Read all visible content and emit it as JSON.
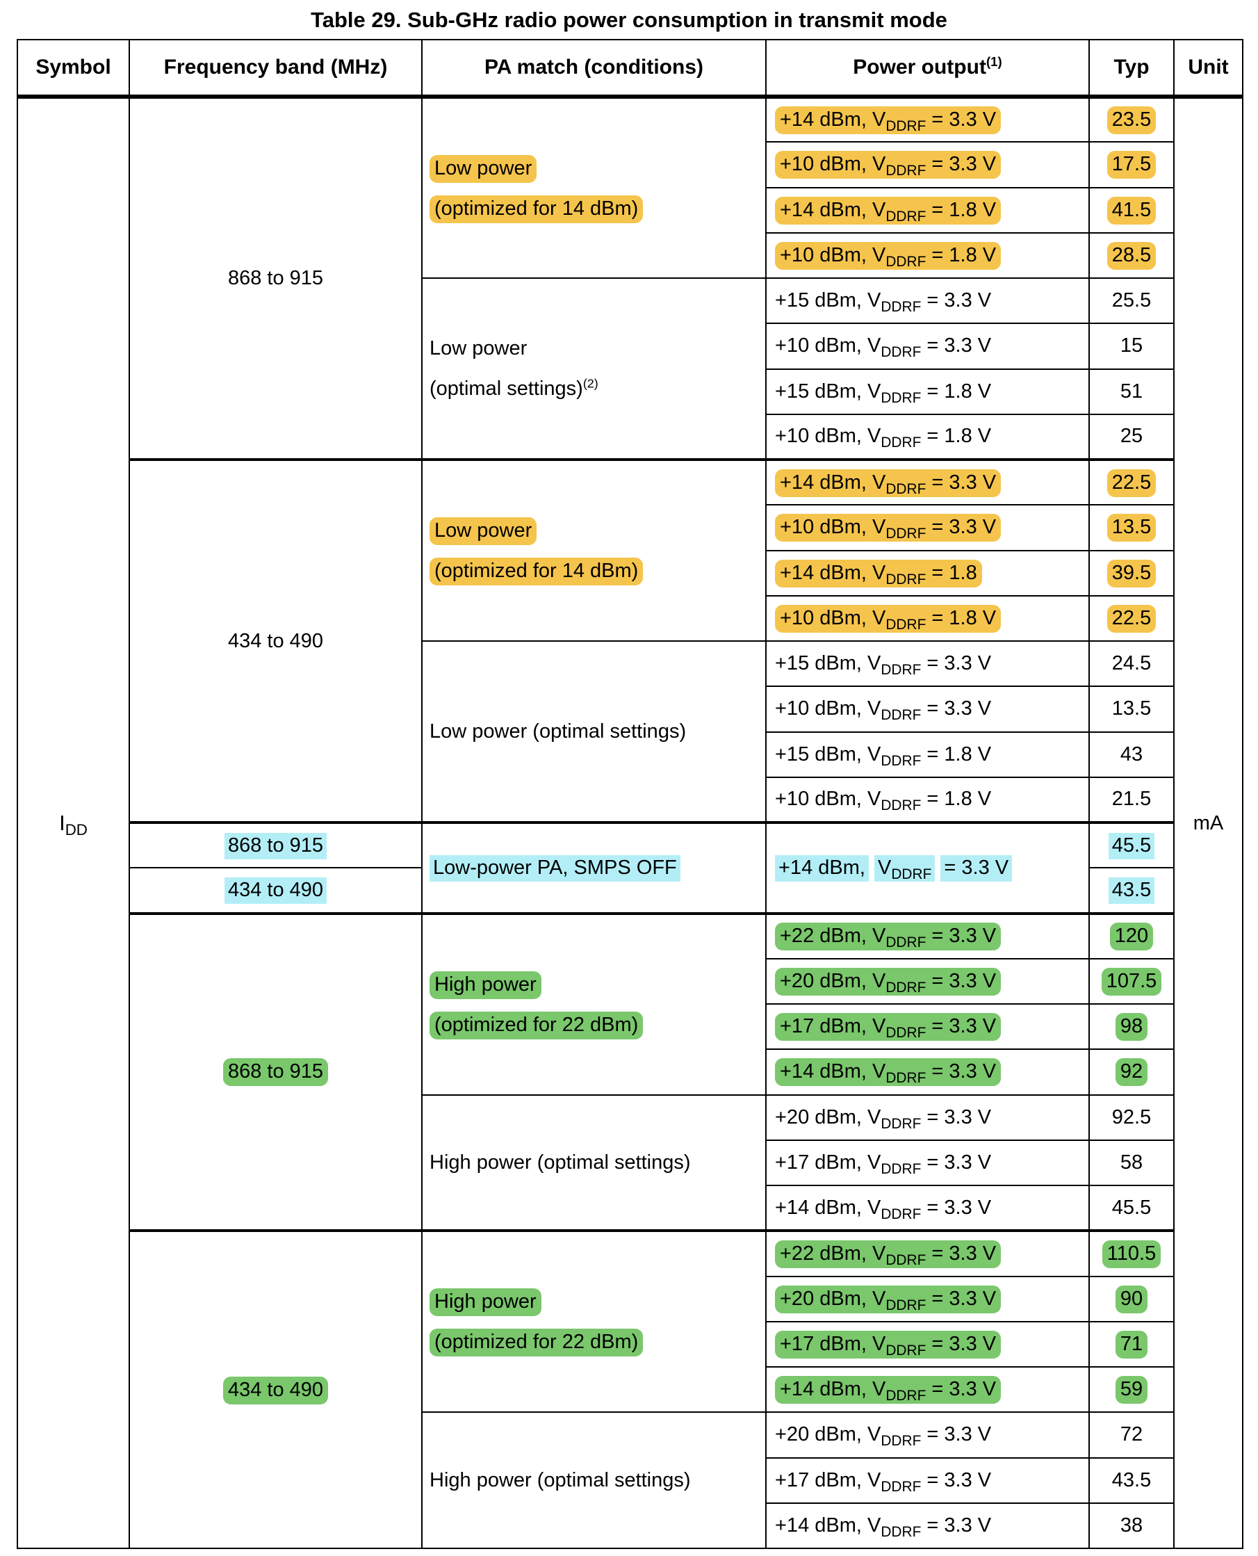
{
  "title": "Table 29. Sub-GHz radio power consumption in transmit mode",
  "header": {
    "symbol": "Symbol",
    "frequency": "Frequency band (MHz)",
    "pa_match": "PA match (conditions)",
    "power_output": "Power output",
    "power_output_sup": "(1)",
    "typ": "Typ",
    "unit": "Unit"
  },
  "symbol": {
    "base": "I",
    "sub": "DD"
  },
  "unit": "mA",
  "colors": {
    "yellow": "#F5C44C",
    "cyan": "#B3EEF7",
    "green": "#7AC76C"
  },
  "rows": [
    {
      "freq": {
        "text": "868 to 915",
        "span": 8,
        "hl": null
      },
      "pa": {
        "span": 4,
        "lines": [
          {
            "text": "Low power",
            "hl": "yellow"
          },
          {
            "text": "(optimized for 14 dBm)",
            "hl": "yellow"
          }
        ]
      },
      "power": {
        "pre": "+14 dBm, V",
        "sub": "DDRF",
        "post": " = 3.3 V",
        "hl": "yellow"
      },
      "typ": {
        "text": "23.5",
        "hl": "yellow"
      }
    },
    {
      "power": {
        "pre": "+10 dBm, V",
        "sub": "DDRF",
        "post": " = 3.3 V",
        "hl": "yellow"
      },
      "typ": {
        "text": "17.5",
        "hl": "yellow"
      }
    },
    {
      "power": {
        "pre": "+14 dBm, V",
        "sub": "DDRF",
        "post": " = 1.8 V",
        "hl": "yellow"
      },
      "typ": {
        "text": "41.5",
        "hl": "yellow"
      }
    },
    {
      "power": {
        "pre": "+10 dBm, V",
        "sub": "DDRF",
        "post": " = 1.8 V",
        "hl": "yellow"
      },
      "typ": {
        "text": "28.5",
        "hl": "yellow"
      }
    },
    {
      "pa": {
        "span": 4,
        "lines": [
          {
            "text": "Low power",
            "hl": null
          },
          {
            "text": "(optimal settings)",
            "sup": "(2)",
            "hl": null
          }
        ]
      },
      "power": {
        "pre": "+15 dBm, V",
        "sub": "DDRF",
        "post": " = 3.3 V",
        "hl": null
      },
      "typ": {
        "text": "25.5",
        "hl": null
      }
    },
    {
      "power": {
        "pre": "+10 dBm, V",
        "sub": "DDRF",
        "post": " = 3.3 V",
        "hl": null
      },
      "typ": {
        "text": "15",
        "hl": null
      }
    },
    {
      "power": {
        "pre": "+15 dBm, V",
        "sub": "DDRF",
        "post": " = 1.8 V",
        "hl": null
      },
      "typ": {
        "text": "51",
        "hl": null
      }
    },
    {
      "power": {
        "pre": "+10 dBm, V",
        "sub": "DDRF",
        "post": " = 1.8 V",
        "hl": null
      },
      "typ": {
        "text": "25",
        "hl": null
      }
    },
    {
      "group_start": true,
      "freq": {
        "text": "434 to 490",
        "span": 8,
        "hl": null
      },
      "pa": {
        "span": 4,
        "lines": [
          {
            "text": "Low power",
            "hl": "yellow"
          },
          {
            "text": "(optimized for 14 dBm)",
            "hl": "yellow"
          }
        ]
      },
      "power": {
        "pre": "+14 dBm, V",
        "sub": "DDRF",
        "post": " = 3.3 V",
        "hl": "yellow"
      },
      "typ": {
        "text": "22.5",
        "hl": "yellow"
      }
    },
    {
      "power": {
        "pre": "+10 dBm, V",
        "sub": "DDRF",
        "post": " = 3.3 V",
        "hl": "yellow"
      },
      "typ": {
        "text": "13.5",
        "hl": "yellow"
      }
    },
    {
      "power": {
        "pre": "+14 dBm, V",
        "sub": "DDRF",
        "post": " = 1.8",
        "hl": "yellow"
      },
      "typ": {
        "text": "39.5",
        "hl": "yellow"
      }
    },
    {
      "power": {
        "pre": "+10 dBm, V",
        "sub": "DDRF",
        "post": " = 1.8 V",
        "hl": "yellow"
      },
      "typ": {
        "text": "22.5",
        "hl": "yellow"
      }
    },
    {
      "pa": {
        "span": 4,
        "lines": [
          {
            "text": "Low power (optimal settings)",
            "hl": null
          }
        ]
      },
      "power": {
        "pre": "+15 dBm, V",
        "sub": "DDRF",
        "post": " = 3.3 V",
        "hl": null
      },
      "typ": {
        "text": "24.5",
        "hl": null
      }
    },
    {
      "power": {
        "pre": "+10 dBm, V",
        "sub": "DDRF",
        "post": " = 3.3 V",
        "hl": null
      },
      "typ": {
        "text": "13.5",
        "hl": null
      }
    },
    {
      "power": {
        "pre": "+15 dBm, V",
        "sub": "DDRF",
        "post": " = 1.8 V",
        "hl": null
      },
      "typ": {
        "text": "43",
        "hl": null
      }
    },
    {
      "power": {
        "pre": "+10 dBm, V",
        "sub": "DDRF",
        "post": " = 1.8 V",
        "hl": null
      },
      "typ": {
        "text": "21.5",
        "hl": null
      }
    },
    {
      "group_start": true,
      "freq": {
        "text": "868 to 915",
        "span": 1,
        "hl": "cyan"
      },
      "pa": {
        "span": 2,
        "lines": [
          {
            "text": "Low-power PA, SMPS OFF",
            "hl": "cyan"
          }
        ]
      },
      "power": {
        "span": 2,
        "hl": "cyan",
        "segs": [
          {
            "bits": [
              {
                "t": "+14 dBm,"
              }
            ]
          },
          {
            "bits": [
              {
                "t": "V"
              },
              {
                "sub": "DDRF"
              }
            ]
          },
          {
            "bits": [
              {
                "t": "= 3.3 V"
              }
            ]
          }
        ]
      },
      "typ": {
        "text": "45.5",
        "hl": "cyan"
      }
    },
    {
      "freq": {
        "text": "434 to 490",
        "span": 1,
        "hl": "cyan"
      },
      "typ": {
        "text": "43.5",
        "hl": "cyan"
      }
    },
    {
      "group_start": true,
      "freq": {
        "text": "868 to 915",
        "span": 7,
        "hl": "green"
      },
      "pa": {
        "span": 4,
        "lines": [
          {
            "text": "High power",
            "hl": "green"
          },
          {
            "text": "(optimized for 22 dBm)",
            "hl": "green"
          }
        ]
      },
      "power": {
        "pre": "+22 dBm, V",
        "sub": "DDRF",
        "post": " = 3.3 V",
        "hl": "green"
      },
      "typ": {
        "text": "120",
        "hl": "green"
      }
    },
    {
      "power": {
        "pre": "+20 dBm, V",
        "sub": "DDRF",
        "post": " = 3.3 V",
        "hl": "green"
      },
      "typ": {
        "text": "107.5",
        "hl": "green"
      }
    },
    {
      "power": {
        "pre": "+17 dBm, V",
        "sub": "DDRF",
        "post": " = 3.3 V",
        "hl": "green"
      },
      "typ": {
        "text": "98",
        "hl": "green"
      }
    },
    {
      "power": {
        "pre": "+14 dBm, V",
        "sub": "DDRF",
        "post": " = 3.3 V",
        "hl": "green"
      },
      "typ": {
        "text": "92",
        "hl": "green"
      }
    },
    {
      "pa": {
        "span": 3,
        "lines": [
          {
            "text": "High power (optimal settings)",
            "hl": null
          }
        ]
      },
      "power": {
        "pre": "+20 dBm, V",
        "sub": "DDRF",
        "post": " = 3.3 V",
        "hl": null
      },
      "typ": {
        "text": "92.5",
        "hl": null
      }
    },
    {
      "power": {
        "pre": "+17 dBm, V",
        "sub": "DDRF",
        "post": " = 3.3 V",
        "hl": null
      },
      "typ": {
        "text": "58",
        "hl": null
      }
    },
    {
      "power": {
        "pre": "+14 dBm, V",
        "sub": "DDRF",
        "post": " = 3.3 V",
        "hl": null
      },
      "typ": {
        "text": "45.5",
        "hl": null
      }
    },
    {
      "group_start": true,
      "freq": {
        "text": "434 to 490",
        "span": 7,
        "hl": "green"
      },
      "pa": {
        "span": 4,
        "lines": [
          {
            "text": "High power",
            "hl": "green"
          },
          {
            "text": "(optimized for 22 dBm)",
            "hl": "green"
          }
        ]
      },
      "power": {
        "pre": "+22 dBm, V",
        "sub": "DDRF",
        "post": " = 3.3 V",
        "hl": "green"
      },
      "typ": {
        "text": "110.5",
        "hl": "green"
      }
    },
    {
      "power": {
        "pre": "+20 dBm, V",
        "sub": "DDRF",
        "post": " = 3.3 V",
        "hl": "green"
      },
      "typ": {
        "text": "90",
        "hl": "green"
      }
    },
    {
      "power": {
        "pre": "+17 dBm, V",
        "sub": "DDRF",
        "post": " = 3.3 V",
        "hl": "green"
      },
      "typ": {
        "text": "71",
        "hl": "green"
      }
    },
    {
      "power": {
        "pre": "+14 dBm, V",
        "sub": "DDRF",
        "post": " = 3.3 V",
        "hl": "green"
      },
      "typ": {
        "text": "59",
        "hl": "green"
      }
    },
    {
      "pa": {
        "span": 3,
        "lines": [
          {
            "text": "High power (optimal settings)",
            "hl": null
          }
        ]
      },
      "power": {
        "pre": "+20 dBm, V",
        "sub": "DDRF",
        "post": " = 3.3 V",
        "hl": null
      },
      "typ": {
        "text": "72",
        "hl": null
      }
    },
    {
      "power": {
        "pre": "+17 dBm, V",
        "sub": "DDRF",
        "post": " = 3.3 V",
        "hl": null
      },
      "typ": {
        "text": "43.5",
        "hl": null
      }
    },
    {
      "power": {
        "pre": "+14 dBm, V",
        "sub": "DDRF",
        "post": " = 3.3 V",
        "hl": null
      },
      "typ": {
        "text": "38",
        "hl": null
      }
    }
  ]
}
